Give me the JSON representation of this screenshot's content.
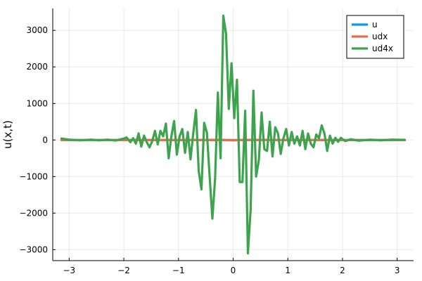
{
  "chart_data": {
    "type": "line",
    "title": "",
    "xlabel": "",
    "ylabel": "u(x,t)",
    "xlim": [
      -3.3,
      3.3
    ],
    "ylim": [
      -3300,
      3600
    ],
    "x_ticks": [
      -3,
      -2,
      -1,
      0,
      1,
      2,
      3
    ],
    "y_ticks": [
      -3000,
      -2000,
      -1000,
      0,
      1000,
      2000,
      3000
    ],
    "x_tick_labels": [
      "−3",
      "−2",
      "−1",
      "0",
      "1",
      "2",
      "3"
    ],
    "y_tick_labels": [
      "−3000",
      "−2000",
      "−1000",
      "0",
      "1000",
      "2000",
      "3000"
    ],
    "grid": true,
    "legend_position": "top-right",
    "series": [
      {
        "name": "u",
        "color": "#009AFA",
        "x": [
          -3.14,
          -2.0,
          -1.0,
          0.0,
          1.0,
          2.0,
          3.14
        ],
        "y": [
          0,
          0,
          0,
          0,
          0,
          0,
          0
        ]
      },
      {
        "name": "udx",
        "color": "#E26F46",
        "x": [
          -3.14,
          -2.0,
          -1.0,
          -0.2,
          0.0,
          0.2,
          1.0,
          2.0,
          3.14
        ],
        "y": [
          0,
          0,
          0,
          5,
          -10,
          5,
          0,
          0,
          0
        ]
      },
      {
        "name": "ud4x",
        "color": "#3DA44D",
        "x": [
          -3.14,
          -3.0,
          -2.8,
          -2.6,
          -2.45,
          -2.3,
          -2.15,
          -2.0,
          -1.95,
          -1.88,
          -1.83,
          -1.78,
          -1.73,
          -1.68,
          -1.63,
          -1.58,
          -1.53,
          -1.48,
          -1.43,
          -1.38,
          -1.33,
          -1.28,
          -1.23,
          -1.18,
          -1.13,
          -1.08,
          -1.03,
          -0.98,
          -0.93,
          -0.88,
          -0.83,
          -0.78,
          -0.73,
          -0.68,
          -0.63,
          -0.58,
          -0.53,
          -0.48,
          -0.43,
          -0.38,
          -0.33,
          -0.28,
          -0.23,
          -0.18,
          -0.13,
          -0.08,
          -0.03,
          0.02,
          0.07,
          0.12,
          0.17,
          0.22,
          0.27,
          0.32,
          0.37,
          0.42,
          0.47,
          0.52,
          0.57,
          0.62,
          0.67,
          0.72,
          0.77,
          0.82,
          0.87,
          0.92,
          0.97,
          1.02,
          1.07,
          1.12,
          1.17,
          1.22,
          1.27,
          1.32,
          1.37,
          1.42,
          1.47,
          1.52,
          1.57,
          1.62,
          1.67,
          1.72,
          1.77,
          1.82,
          1.87,
          1.92,
          1.97,
          2.05,
          2.15,
          2.3,
          2.5,
          2.7,
          2.9,
          3.14
        ],
        "y": [
          40,
          10,
          -10,
          10,
          -10,
          10,
          -15,
          40,
          70,
          -60,
          50,
          -100,
          180,
          -180,
          120,
          -60,
          -200,
          -30,
          250,
          -120,
          250,
          100,
          450,
          -500,
          100,
          520,
          -400,
          100,
          300,
          -350,
          220,
          -530,
          180,
          820,
          -850,
          -1350,
          470,
          200,
          -1000,
          -2150,
          -1050,
          1300,
          -500,
          3400,
          2900,
          850,
          2100,
          600,
          1650,
          -1150,
          -1150,
          800,
          -3100,
          -1900,
          1350,
          -1000,
          -550,
          750,
          -250,
          -300,
          500,
          -450,
          350,
          180,
          -380,
          50,
          300,
          -150,
          220,
          -100,
          100,
          -150,
          250,
          -250,
          180,
          -100,
          -200,
          150,
          50,
          400,
          180,
          -300,
          120,
          -100,
          60,
          -50,
          60,
          -30,
          20,
          -20,
          10,
          -10,
          10,
          5
        ]
      }
    ]
  }
}
